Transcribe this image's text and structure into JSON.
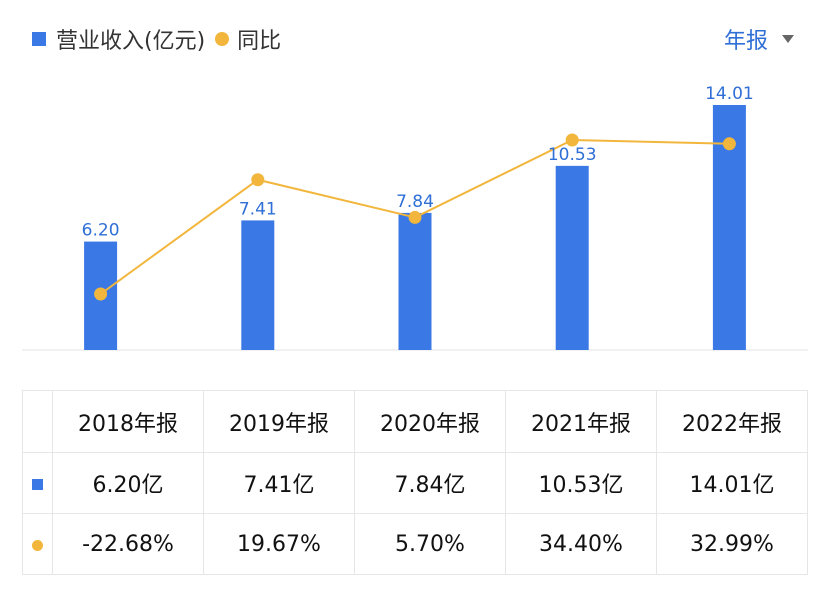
{
  "legend": {
    "revenue_label": "营业收入(亿元)",
    "yoy_label": "同比"
  },
  "period_select": {
    "value": "年报"
  },
  "colors": {
    "bar": "#3a78e6",
    "line": "#f2b63c",
    "value_label": "#2f6fd6",
    "positive": "#d9534f",
    "negative": "#2e9e6b"
  },
  "icons": {
    "dropdown": "caret-down-icon"
  },
  "chart_data": {
    "type": "bar",
    "categories": [
      "2018年报",
      "2019年报",
      "2020年报",
      "2021年报",
      "2022年报"
    ],
    "series": [
      {
        "name": "营业收入(亿元)",
        "type": "bar",
        "values": [
          6.2,
          7.41,
          7.84,
          10.53,
          14.01
        ],
        "labels": [
          "6.20",
          "7.41",
          "7.84",
          "10.53",
          "14.01"
        ]
      },
      {
        "name": "同比",
        "type": "line",
        "values": [
          -22.68,
          19.67,
          5.7,
          34.4,
          32.99
        ]
      }
    ],
    "legend": "top-left",
    "grid": false
  },
  "table": {
    "headers": [
      "2018年报",
      "2019年报",
      "2020年报",
      "2021年报",
      "2022年报"
    ],
    "revenue_row": [
      "6.20亿",
      "7.41亿",
      "7.84亿",
      "10.53亿",
      "14.01亿"
    ],
    "yoy_row": [
      "-22.68%",
      "19.67%",
      "5.70%",
      "34.40%",
      "32.99%"
    ]
  }
}
